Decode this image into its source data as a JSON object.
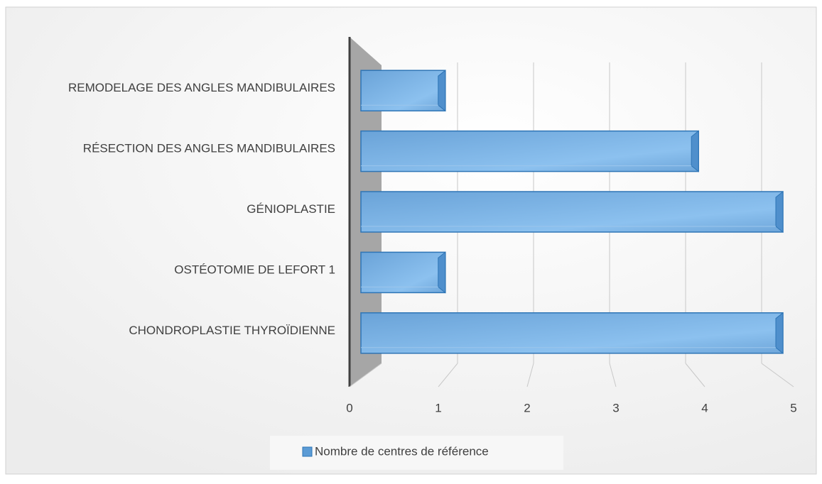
{
  "chart_data": {
    "type": "bar3d_horizontal",
    "categories": [
      "REMODELAGE DES ANGLES MANDIBULAIRES",
      "RÉSECTION DES ANGLES MANDIBULAIRES",
      "GÉNIOPLASTIE",
      "OSTÉOTOMIE DE LEFORT 1",
      "CHONDROPLASTIE THYROÏDIENNE"
    ],
    "series": [
      {
        "name": "Nombre de centres de référence",
        "color": "#5b9bd5",
        "values": [
          1,
          4,
          5,
          1,
          5
        ]
      }
    ],
    "xlim": [
      0,
      5
    ],
    "xticks": [
      0,
      1,
      2,
      3,
      4,
      5
    ],
    "grid": true,
    "legend": "bottom"
  }
}
